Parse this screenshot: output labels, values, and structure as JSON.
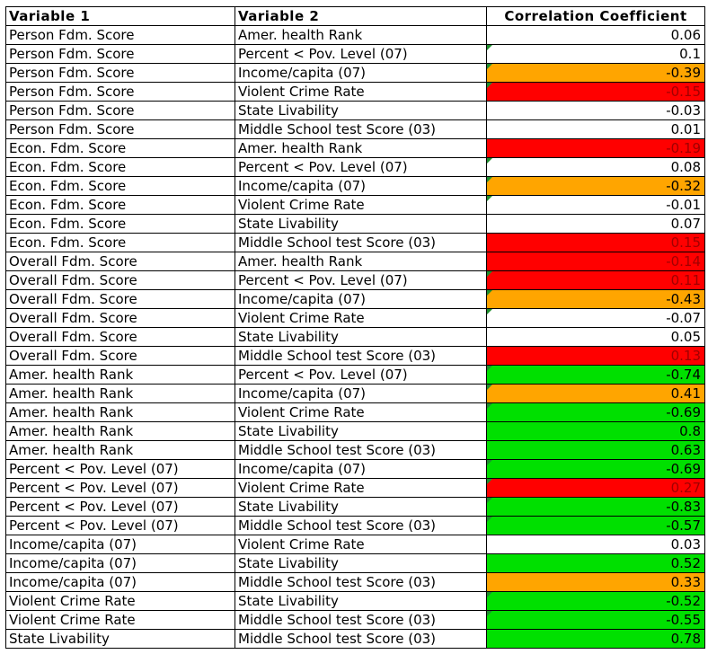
{
  "headers": [
    "Variable 1",
    "Variable 2",
    "Correlation Coefficient"
  ],
  "colors": {
    "red": "#ff0000",
    "orange": "#ffa500",
    "green": "#00e000",
    "white": "#ffffff"
  },
  "rows": [
    {
      "v1": "Person Fdm. Score",
      "v2": "Amer. health Rank",
      "coef": "0.06",
      "fill": "white",
      "mark": false
    },
    {
      "v1": "Person Fdm. Score",
      "v2": "Percent < Pov. Level (07)",
      "coef": "0.1",
      "fill": "white",
      "mark": true
    },
    {
      "v1": "Person Fdm. Score",
      "v2": "Income/capita (07)",
      "coef": "-0.39",
      "fill": "orange",
      "mark": true
    },
    {
      "v1": "Person Fdm. Score",
      "v2": "Violent Crime Rate",
      "coef": "-0.15",
      "fill": "red",
      "mark": true
    },
    {
      "v1": "Person Fdm. Score",
      "v2": "State Livability",
      "coef": "-0.03",
      "fill": "white",
      "mark": false
    },
    {
      "v1": "Person Fdm. Score",
      "v2": "Middle School test Score (03)",
      "coef": "0.01",
      "fill": "white",
      "mark": false
    },
    {
      "v1": "Econ. Fdm. Score",
      "v2": "Amer. health Rank",
      "coef": "-0.19",
      "fill": "red",
      "mark": false
    },
    {
      "v1": "Econ. Fdm. Score",
      "v2": "Percent < Pov. Level (07)",
      "coef": "0.08",
      "fill": "white",
      "mark": true
    },
    {
      "v1": "Econ. Fdm. Score",
      "v2": "Income/capita (07)",
      "coef": "-0.32",
      "fill": "orange",
      "mark": true
    },
    {
      "v1": "Econ. Fdm. Score",
      "v2": "Violent Crime Rate",
      "coef": "-0.01",
      "fill": "white",
      "mark": true
    },
    {
      "v1": "Econ. Fdm. Score",
      "v2": "State Livability",
      "coef": "0.07",
      "fill": "white",
      "mark": false
    },
    {
      "v1": "Econ. Fdm. Score",
      "v2": "Middle School test Score (03)",
      "coef": "0.15",
      "fill": "red",
      "mark": false
    },
    {
      "v1": "Overall Fdm. Score",
      "v2": "Amer. health Rank",
      "coef": "-0.14",
      "fill": "red",
      "mark": false
    },
    {
      "v1": "Overall Fdm. Score",
      "v2": "Percent < Pov. Level (07)",
      "coef": "0.11",
      "fill": "red",
      "mark": true
    },
    {
      "v1": "Overall Fdm. Score",
      "v2": "Income/capita (07)",
      "coef": "-0.43",
      "fill": "orange",
      "mark": true
    },
    {
      "v1": "Overall Fdm. Score",
      "v2": "Violent Crime Rate",
      "coef": "-0.07",
      "fill": "white",
      "mark": true
    },
    {
      "v1": "Overall Fdm. Score",
      "v2": "State Livability",
      "coef": "0.05",
      "fill": "white",
      "mark": false
    },
    {
      "v1": "Overall Fdm. Score",
      "v2": "Middle School test Score (03)",
      "coef": "0.13",
      "fill": "red",
      "mark": false
    },
    {
      "v1": "Amer. health Rank",
      "v2": "Percent < Pov. Level (07)",
      "coef": "-0.74",
      "fill": "green",
      "mark": true
    },
    {
      "v1": "Amer. health Rank",
      "v2": "Income/capita (07)",
      "coef": "0.41",
      "fill": "orange",
      "mark": true
    },
    {
      "v1": "Amer. health Rank",
      "v2": "Violent Crime Rate",
      "coef": "-0.69",
      "fill": "green",
      "mark": true
    },
    {
      "v1": "Amer. health Rank",
      "v2": "State Livability",
      "coef": "0.8",
      "fill": "green",
      "mark": false
    },
    {
      "v1": "Amer. health Rank",
      "v2": "Middle School test Score (03)",
      "coef": "0.63",
      "fill": "green",
      "mark": false
    },
    {
      "v1": "Percent < Pov. Level (07)",
      "v2": "Income/capita (07)",
      "coef": "-0.69",
      "fill": "green",
      "mark": true
    },
    {
      "v1": "Percent < Pov. Level (07)",
      "v2": "Violent Crime Rate",
      "coef": "0.27",
      "fill": "red",
      "mark": true
    },
    {
      "v1": "Percent < Pov. Level (07)",
      "v2": "State Livability",
      "coef": "-0.83",
      "fill": "green",
      "mark": true
    },
    {
      "v1": "Percent < Pov. Level (07)",
      "v2": "Middle School test Score (03)",
      "coef": "-0.57",
      "fill": "green",
      "mark": true
    },
    {
      "v1": "Income/capita (07)",
      "v2": "Violent Crime Rate",
      "coef": "0.03",
      "fill": "white",
      "mark": false
    },
    {
      "v1": "Income/capita (07)",
      "v2": "State Livability",
      "coef": "0.52",
      "fill": "green",
      "mark": false
    },
    {
      "v1": "Income/capita (07)",
      "v2": "Middle School test Score (03)",
      "coef": "0.33",
      "fill": "orange",
      "mark": false
    },
    {
      "v1": "Violent Crime Rate",
      "v2": "State Livability",
      "coef": "-0.52",
      "fill": "green",
      "mark": true
    },
    {
      "v1": "Violent Crime Rate",
      "v2": "Middle School test Score (03)",
      "coef": "-0.55",
      "fill": "green",
      "mark": true
    },
    {
      "v1": "State Livability",
      "v2": "Middle School test Score (03)",
      "coef": "0.78",
      "fill": "green",
      "mark": false
    }
  ]
}
